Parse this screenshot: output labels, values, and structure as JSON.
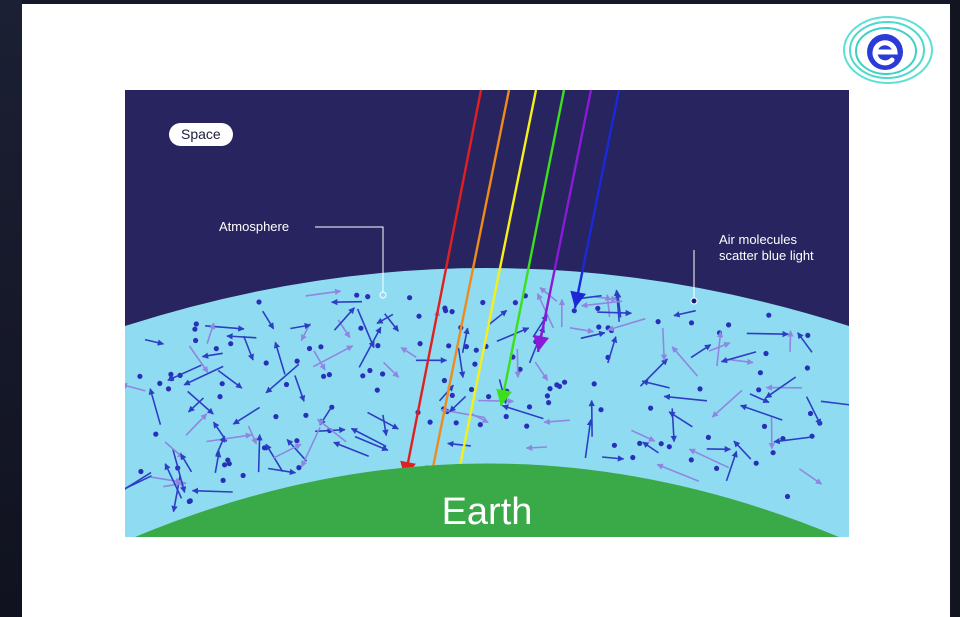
{
  "diagram": {
    "labels": {
      "space": "Space",
      "atmosphere": "Atmosphere",
      "air_molecules_line1": "Air molecules",
      "air_molecules_line2": "scatter blue light",
      "earth": "Earth"
    },
    "incoming_light_rays": [
      {
        "color_name": "red",
        "color": "#e02020"
      },
      {
        "color_name": "orange",
        "color": "#f08a1a"
      },
      {
        "color_name": "yellow",
        "color": "#f5f01a"
      },
      {
        "color_name": "green",
        "color": "#3ce01a"
      },
      {
        "color_name": "violet",
        "color": "#8a1ad8"
      },
      {
        "color_name": "blue",
        "color": "#1a28d8"
      }
    ],
    "colors": {
      "space": "#27245f",
      "atmosphere": "#8fdcf2",
      "earth": "#3aaa48",
      "scattered_blue": "#2d3ec4",
      "scattered_violet": "#8f86e0",
      "molecule": "#2a2fb8"
    }
  },
  "logo": {
    "icon": "spiral-e-logo",
    "color": "#3dd5c8"
  }
}
